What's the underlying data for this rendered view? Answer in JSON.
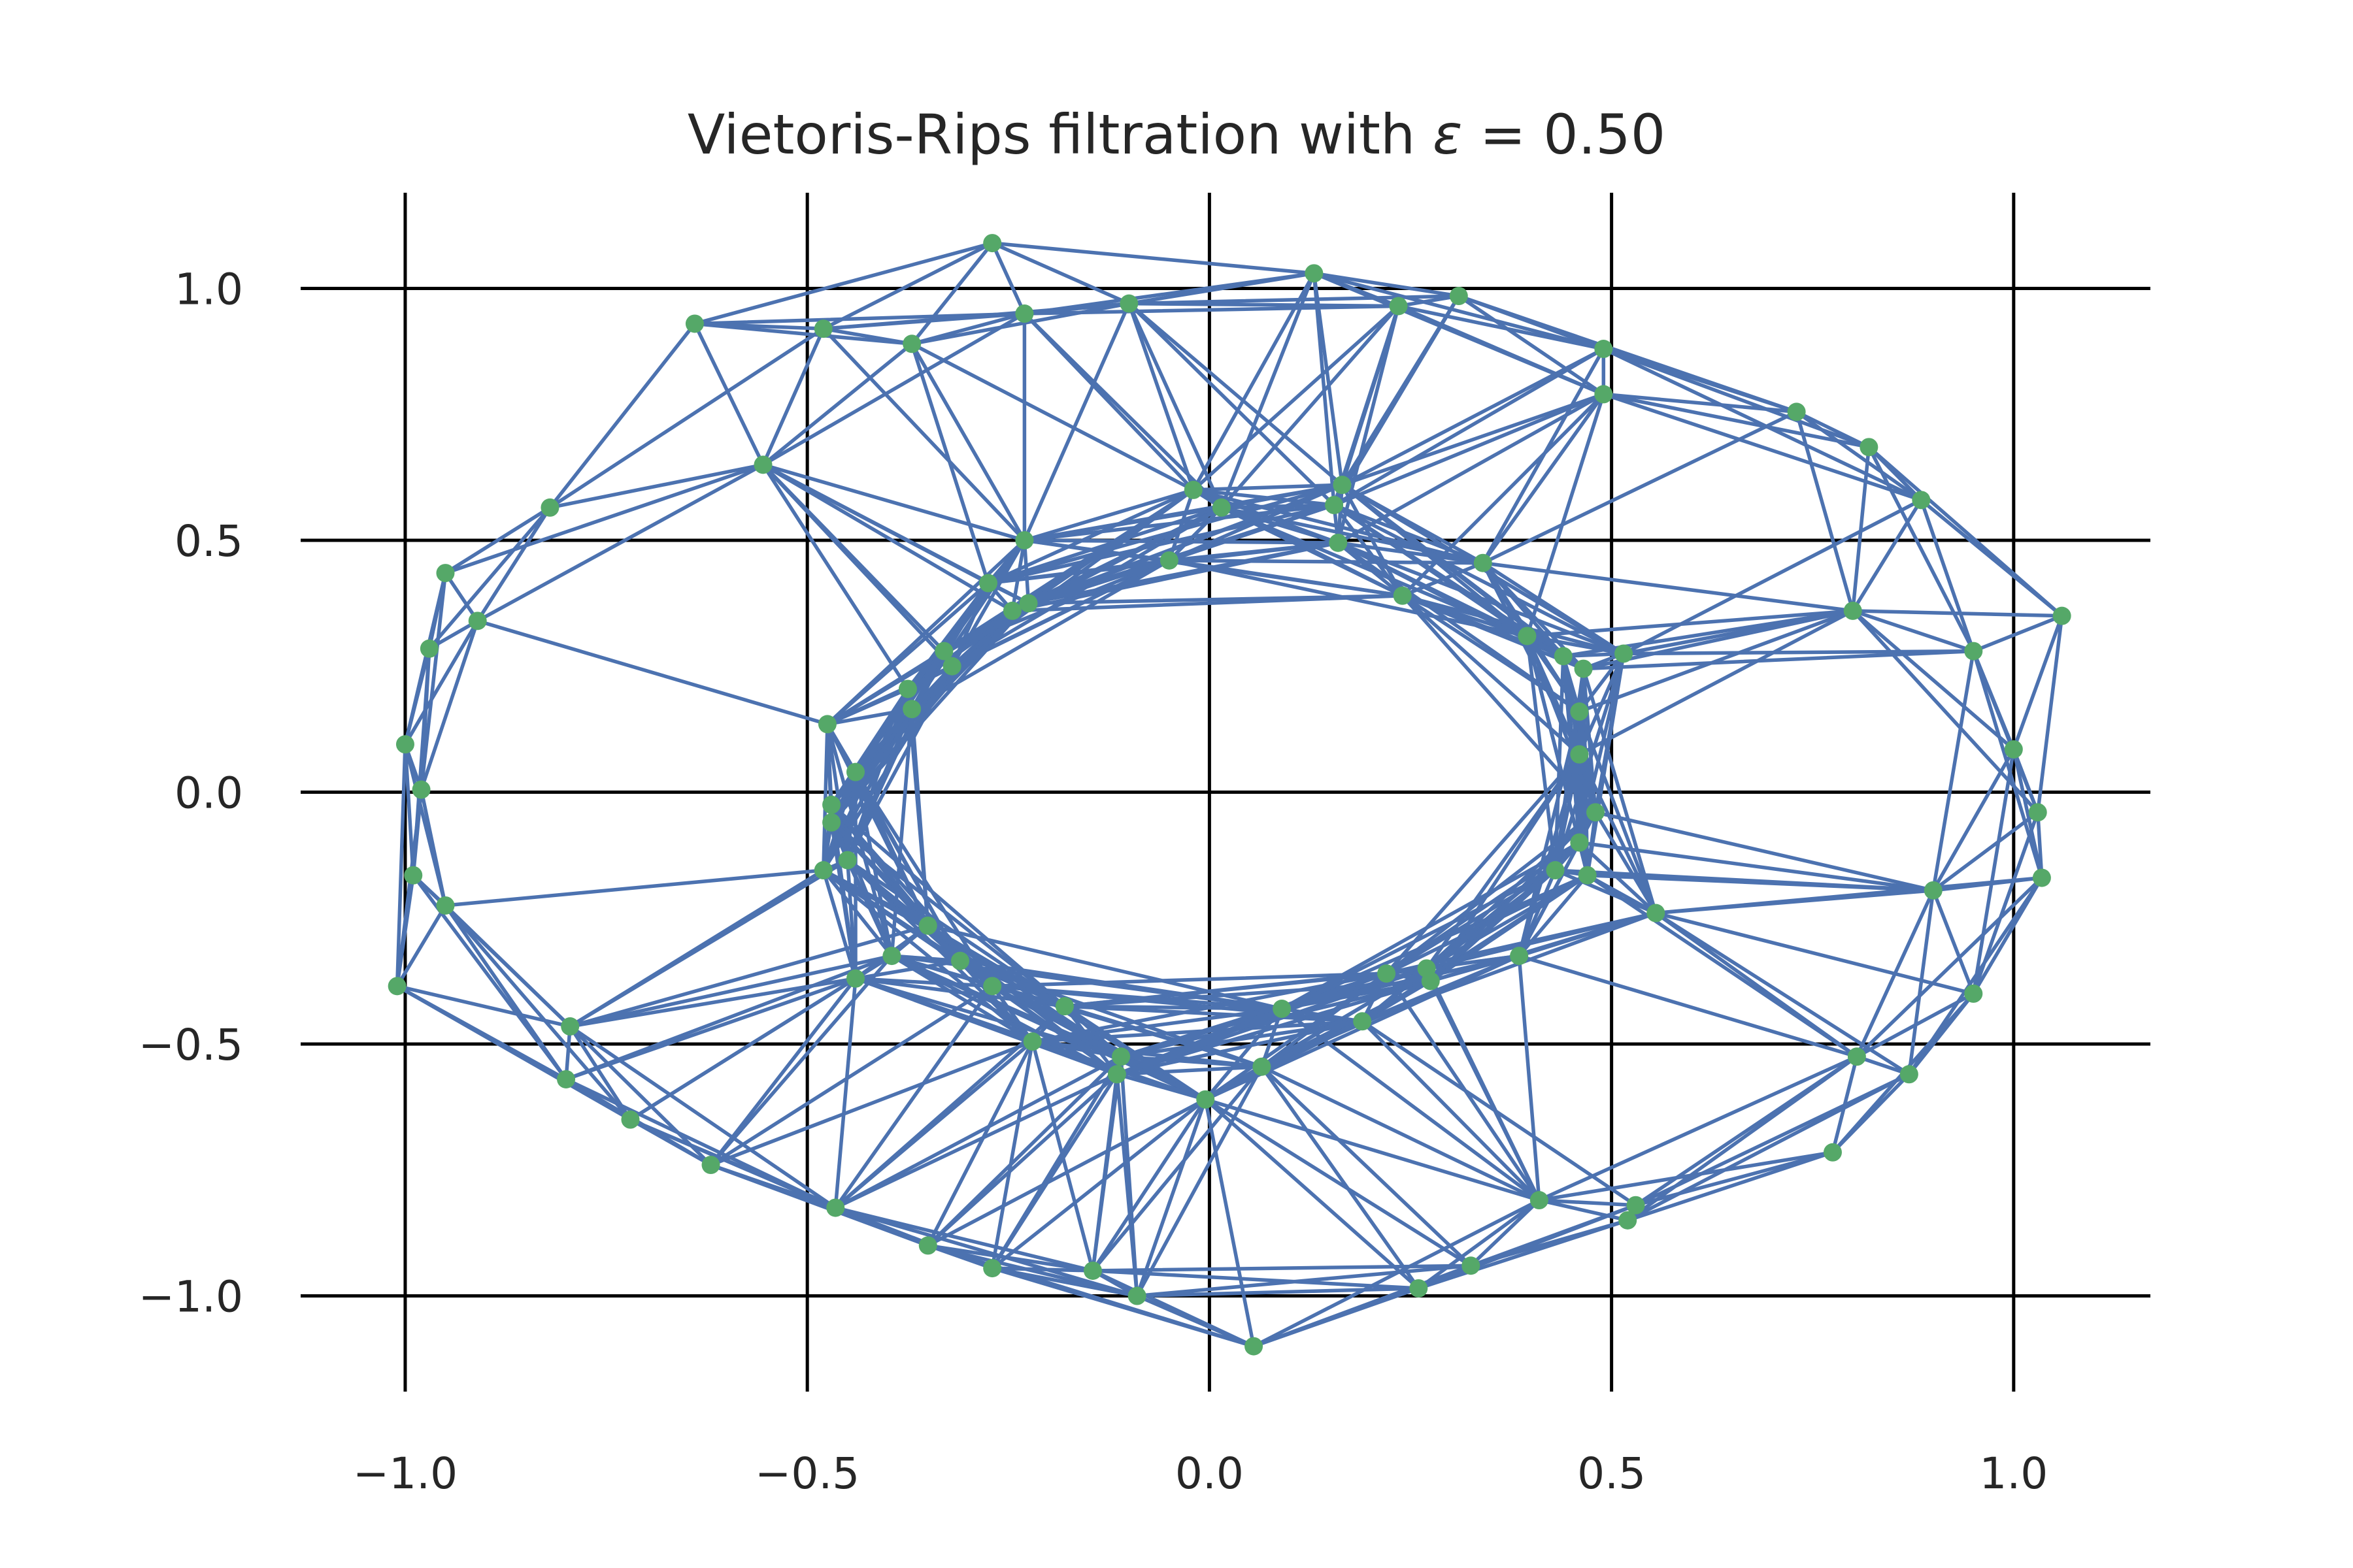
{
  "chart_data": {
    "type": "scatter",
    "title": "Vietoris-Rips filtration with ε = 0.50",
    "title_parts": {
      "prefix": "Vietoris-Rips filtration with ",
      "epsilon_symbol": "ε",
      "equals": " = ",
      "epsilon_value": "0.50"
    },
    "epsilon": 0.5,
    "xlabel": "",
    "ylabel": "",
    "xlim": [
      -1.13,
      1.17
    ],
    "ylim": [
      -1.19,
      1.19
    ],
    "xticks": [
      -1.0,
      -0.5,
      0.0,
      0.5,
      1.0
    ],
    "yticks": [
      1.0,
      0.5,
      0.0,
      -0.5,
      -1.0
    ],
    "xtick_labels": [
      "−1.0",
      "−0.5",
      "0.0",
      "0.5",
      "1.0"
    ],
    "ytick_labels": [
      "1.0",
      "0.5",
      "0.0",
      "−0.5",
      "−1.0"
    ],
    "grid": true,
    "edge_color": "#4c72b0",
    "point_color": "#55a868",
    "grid_color": "#000000",
    "points": [
      [
        -0.27,
        1.09
      ],
      [
        -0.64,
        0.93
      ],
      [
        -0.48,
        0.92
      ],
      [
        -0.37,
        0.89
      ],
      [
        -0.23,
        0.95
      ],
      [
        -0.1,
        0.97
      ],
      [
        0.13,
        1.03
      ],
      [
        0.235,
        0.965
      ],
      [
        0.31,
        0.985
      ],
      [
        0.49,
        0.88
      ],
      [
        0.49,
        0.79
      ],
      [
        0.73,
        0.755
      ],
      [
        0.82,
        0.685
      ],
      [
        0.885,
        0.58
      ],
      [
        1.06,
        0.35
      ],
      [
        0.95,
        0.28
      ],
      [
        1.0,
        0.085
      ],
      [
        1.03,
        -0.04
      ],
      [
        1.035,
        -0.17
      ],
      [
        0.9,
        -0.195
      ],
      [
        0.95,
        -0.4
      ],
      [
        0.87,
        -0.56
      ],
      [
        0.805,
        -0.525
      ],
      [
        0.775,
        -0.715
      ],
      [
        0.53,
        -0.82
      ],
      [
        0.52,
        -0.85
      ],
      [
        0.41,
        -0.81
      ],
      [
        0.325,
        -0.94
      ],
      [
        0.26,
        -0.985
      ],
      [
        0.055,
        -1.1
      ],
      [
        -0.09,
        -1.0
      ],
      [
        -0.145,
        -0.95
      ],
      [
        -0.27,
        -0.945
      ],
      [
        -0.35,
        -0.9
      ],
      [
        -0.465,
        -0.825
      ],
      [
        -0.62,
        -0.74
      ],
      [
        -0.72,
        -0.65
      ],
      [
        -0.8,
        -0.57
      ],
      [
        -0.795,
        -0.465
      ],
      [
        -0.95,
        -0.225
      ],
      [
        -0.99,
        -0.165
      ],
      [
        -1.01,
        -0.385
      ],
      [
        -0.98,
        0.005
      ],
      [
        -1.0,
        0.095
      ],
      [
        -0.97,
        0.285
      ],
      [
        -0.95,
        0.435
      ],
      [
        -0.91,
        0.34
      ],
      [
        -0.82,
        0.565
      ],
      [
        -0.555,
        0.65
      ],
      [
        -0.23,
        0.5
      ],
      [
        -0.02,
        0.6
      ],
      [
        0.015,
        0.565
      ],
      [
        0.155,
        0.57
      ],
      [
        0.165,
        0.61
      ],
      [
        0.16,
        0.495
      ],
      [
        -0.05,
        0.46
      ],
      [
        0.34,
        0.455
      ],
      [
        0.24,
        0.39
      ],
      [
        -0.275,
        0.415
      ],
      [
        -0.245,
        0.36
      ],
      [
        -0.225,
        0.375
      ],
      [
        -0.33,
        0.28
      ],
      [
        -0.32,
        0.25
      ],
      [
        -0.375,
        0.205
      ],
      [
        -0.37,
        0.165
      ],
      [
        -0.475,
        0.135
      ],
      [
        -0.47,
        -0.025
      ],
      [
        -0.47,
        -0.06
      ],
      [
        -0.45,
        -0.135
      ],
      [
        -0.48,
        -0.155
      ],
      [
        -0.44,
        0.04
      ],
      [
        -0.35,
        -0.265
      ],
      [
        -0.395,
        -0.325
      ],
      [
        -0.31,
        -0.335
      ],
      [
        -0.44,
        -0.37
      ],
      [
        -0.27,
        -0.385
      ],
      [
        -0.18,
        -0.425
      ],
      [
        -0.22,
        -0.495
      ],
      [
        -0.11,
        -0.525
      ],
      [
        -0.115,
        -0.56
      ],
      [
        -0.005,
        -0.61
      ],
      [
        0.065,
        -0.545
      ],
      [
        0.09,
        -0.43
      ],
      [
        0.19,
        -0.455
      ],
      [
        0.22,
        -0.36
      ],
      [
        0.27,
        -0.35
      ],
      [
        0.275,
        -0.375
      ],
      [
        0.385,
        -0.325
      ],
      [
        0.43,
        -0.155
      ],
      [
        0.47,
        -0.165
      ],
      [
        0.46,
        -0.1
      ],
      [
        0.48,
        -0.04
      ],
      [
        0.46,
        0.075
      ],
      [
        0.46,
        0.16
      ],
      [
        0.44,
        0.27
      ],
      [
        0.465,
        0.245
      ],
      [
        0.515,
        0.275
      ],
      [
        0.395,
        0.31
      ],
      [
        0.8,
        0.36
      ],
      [
        0.555,
        -0.24
      ]
    ]
  }
}
